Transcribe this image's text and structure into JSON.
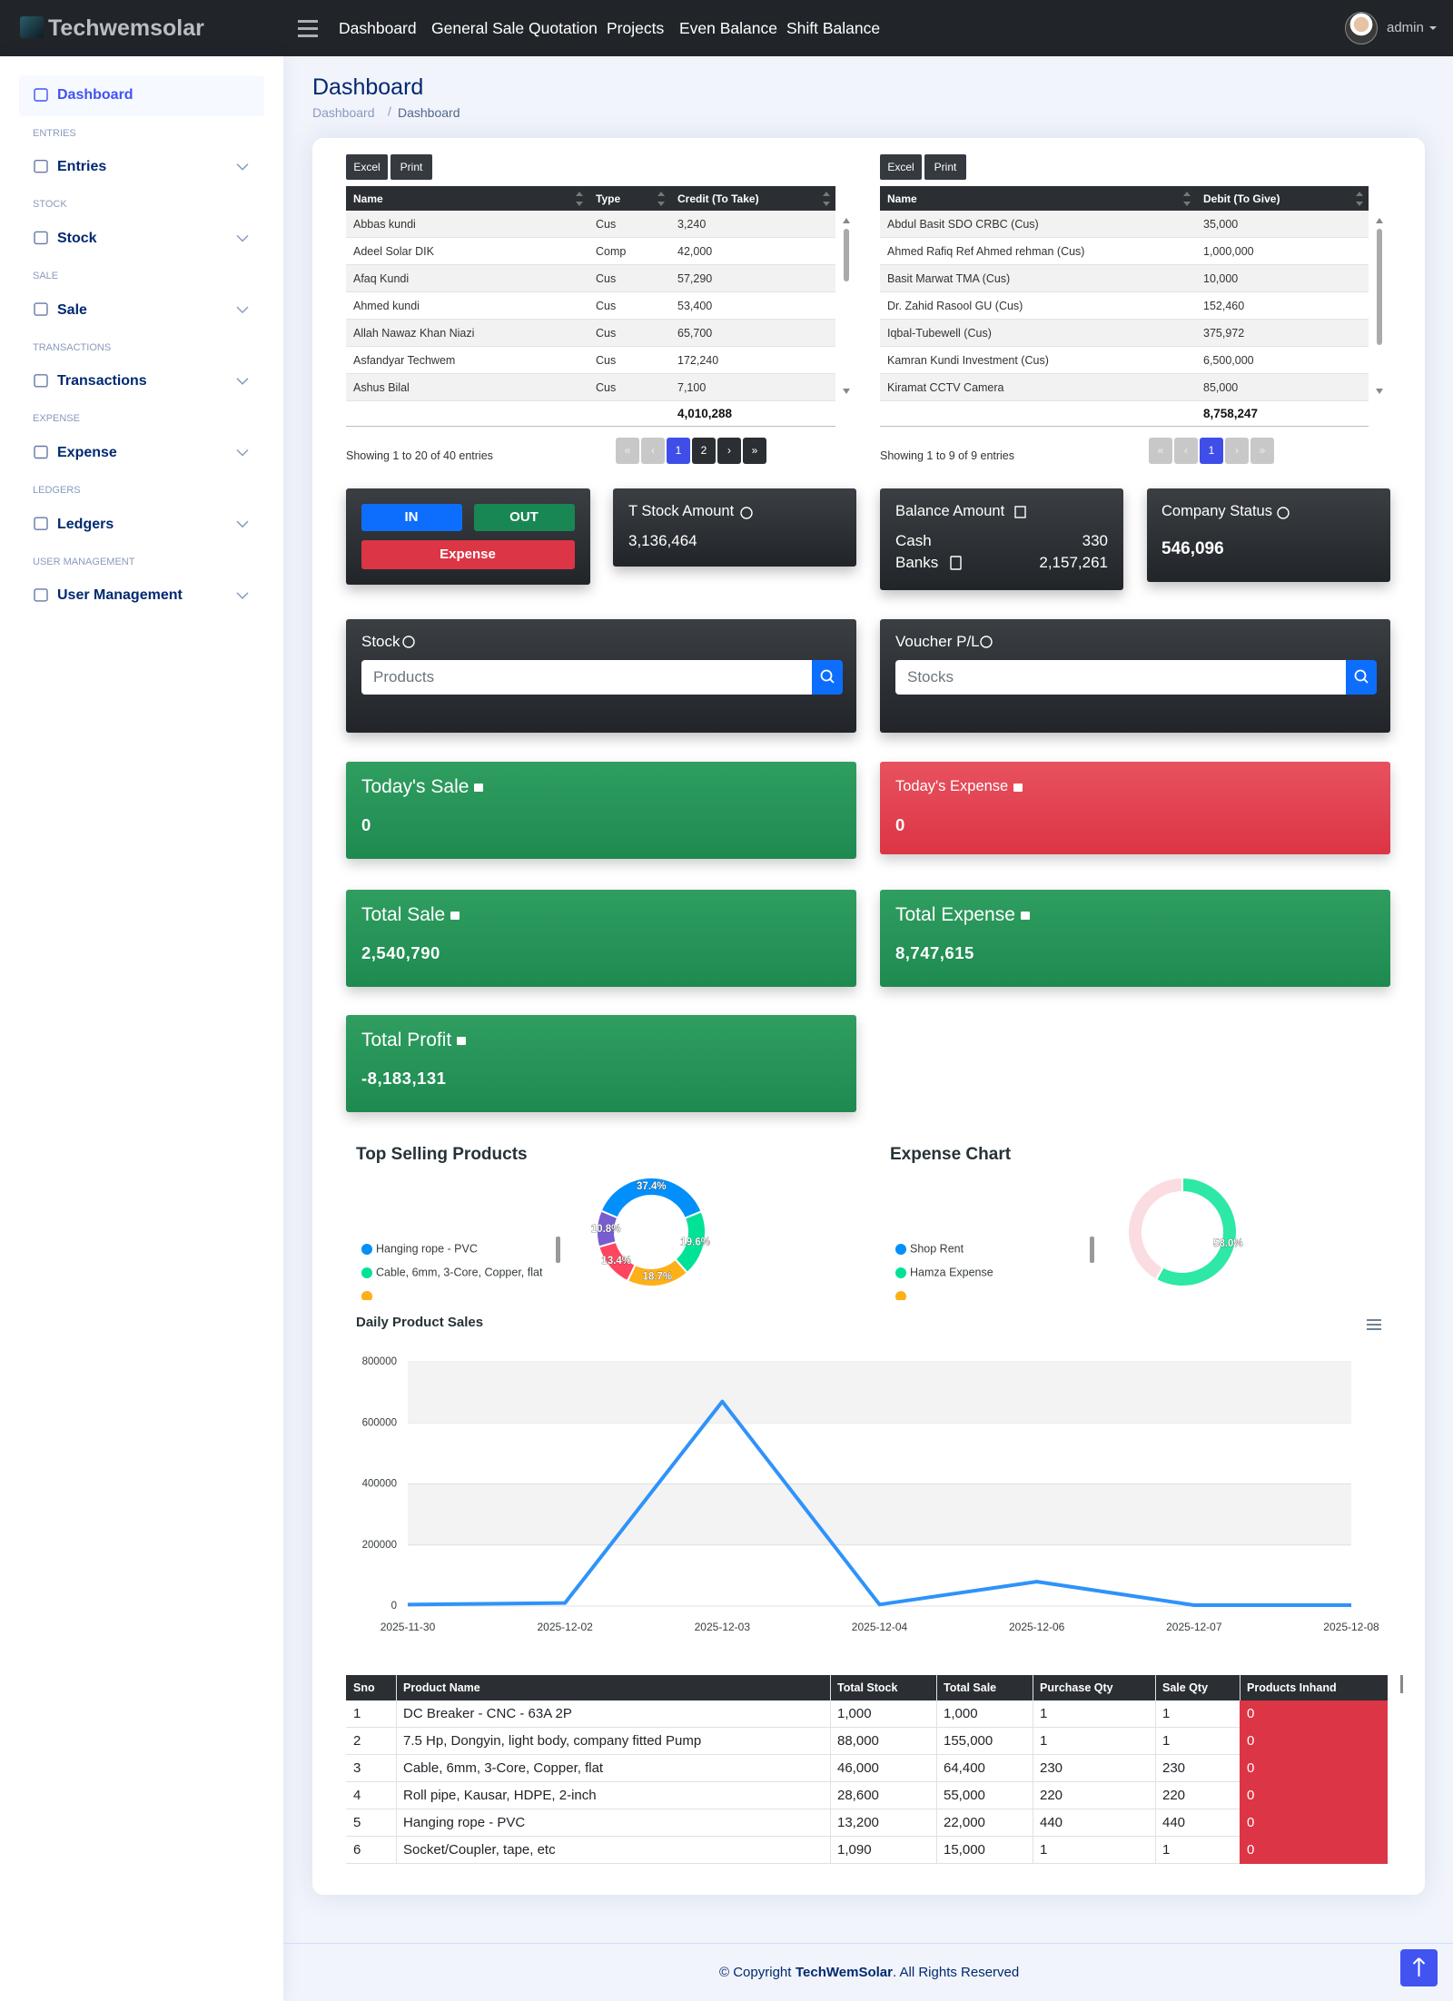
{
  "brand": "Techwemsolar",
  "nav": [
    "Dashboard",
    "General Sale",
    "Quotation",
    "Projects",
    "Even Balance",
    "Shift Balance"
  ],
  "user": "admin",
  "sidebar": [
    {
      "section": null,
      "label": "Dashboard"
    },
    {
      "section": "ENTRIES",
      "label": "Entries"
    },
    {
      "section": "STOCK",
      "label": "Stock"
    },
    {
      "section": "SALE",
      "label": "Sale"
    },
    {
      "section": "TRANSACTIONS",
      "label": "Transactions"
    },
    {
      "section": "EXPENSE",
      "label": "Expense"
    },
    {
      "section": "LEDGERS",
      "label": "Ledgers"
    },
    {
      "section": "USER MANAGEMENT",
      "label": "User Management"
    }
  ],
  "page_title": "Dashboard",
  "breadcrumb": [
    "Dashboard",
    "Dashboard"
  ],
  "credit_table": {
    "buttons": [
      "Excel",
      "Print"
    ],
    "columns": [
      "Name",
      "Type",
      "Credit (To Take)"
    ],
    "rows": [
      [
        "Abbas kundi",
        "Cus",
        "3,240"
      ],
      [
        "Adeel Solar DIK",
        "Comp",
        "42,000"
      ],
      [
        "Afaq Kundi",
        "Cus",
        "57,290"
      ],
      [
        "Ahmed kundi",
        "Cus",
        "53,400"
      ],
      [
        "Allah Nawaz Khan Niazi",
        "Cus",
        "65,700"
      ],
      [
        "Asfandyar Techwem",
        "Cus",
        "172,240"
      ],
      [
        "Ashus Bilal",
        "Cus",
        "7,100"
      ]
    ],
    "total": "4,010,288",
    "info": "Showing 1 to 20 of 40 entries",
    "pages": [
      "«",
      "‹",
      "1",
      "2",
      "›",
      "»"
    ]
  },
  "debit_table": {
    "buttons": [
      "Excel",
      "Print"
    ],
    "columns": [
      "Name",
      "Debit (To Give)"
    ],
    "rows": [
      [
        "Abdul Basit SDO CRBC (Cus)",
        "35,000"
      ],
      [
        "Ahmed Rafiq Ref Ahmed rehman (Cus)",
        "1,000,000"
      ],
      [
        "Basit Marwat TMA (Cus)",
        "10,000"
      ],
      [
        "Dr. Zahid Rasool GU (Cus)",
        "152,460"
      ],
      [
        "Iqbal-Tubewell (Cus)",
        "375,972"
      ],
      [
        "Kamran Kundi Investment (Cus)",
        "6,500,000"
      ],
      [
        "Kiramat CCTV Camera",
        "85,000"
      ]
    ],
    "total": "8,758,247",
    "info": "Showing 1 to 9 of 9 entries",
    "pages": [
      "«",
      "‹",
      "1",
      "›",
      "»"
    ]
  },
  "action_card": {
    "in": "IN",
    "out": "OUT",
    "expense": "Expense"
  },
  "stock_amount": {
    "title": "T Stock Amount",
    "value": "3,136,464"
  },
  "balance": {
    "title": "Balance Amount",
    "cash_label": "Cash",
    "cash": "330",
    "banks_label": "Banks",
    "banks": "2,157,261"
  },
  "company_status": {
    "title": "Company Status",
    "value": "546,096"
  },
  "stock_search": {
    "title": "Stock",
    "placeholder": "Products"
  },
  "voucher_search": {
    "title": "Voucher P/L",
    "placeholder": "Stocks"
  },
  "summary": [
    {
      "title": "Today's Sale",
      "value": "0"
    },
    {
      "title": "Today's Expense",
      "value": "0"
    },
    {
      "title": "Total Sale",
      "value": "2,540,790"
    },
    {
      "title": "Total Expense",
      "value": "8,747,615"
    },
    {
      "title": "Total Profit",
      "value": "-8,183,131"
    }
  ],
  "chart_data": [
    {
      "type": "pie",
      "donut": true,
      "title": "Top Selling Products",
      "labels": [
        "Hanging rope - PVC",
        "Cable, 6mm, 3-Core, Copper, flat",
        null,
        null,
        null
      ],
      "values": [
        37.4,
        19.6,
        18.7,
        13.4,
        10.8
      ],
      "value_labels": [
        "37.4%",
        "19.6%",
        "18.7%",
        "13.4%",
        "10.8%"
      ],
      "colors": [
        "#008ffb",
        "#00e396",
        "#feb019",
        "#ff4560",
        "#775dd0"
      ]
    },
    {
      "type": "pie",
      "donut": true,
      "title": "Expense Chart",
      "legend": [
        "Shop Rent",
        "Hamza Expense"
      ],
      "legend_colors": [
        "#008ffb",
        "#00e396"
      ],
      "values": [
        58.0,
        42.0
      ],
      "value_labels": [
        "58.0%",
        null
      ],
      "colors": [
        "#2ee8a5",
        "#fbdde1"
      ]
    },
    {
      "type": "line",
      "title": "Daily Product Sales",
      "categories": [
        "2025-11-30",
        "2025-12-02",
        "2025-12-03",
        "2025-12-04",
        "2025-12-06",
        "2025-12-07",
        "2025-12-08"
      ],
      "values": [
        5000,
        10000,
        670000,
        5000,
        80000,
        3000,
        3000
      ],
      "color": "#2e93fa",
      "ylim": [
        0,
        800000
      ],
      "yticks": [
        0,
        200000,
        400000,
        600000,
        800000
      ],
      "grid": true
    }
  ],
  "product_table": {
    "columns": [
      "Sno",
      "Product Name",
      "Total Stock",
      "Total Sale",
      "Purchase Qty",
      "Sale Qty",
      "Products Inhand"
    ],
    "rows": [
      [
        "1",
        "DC Breaker - CNC - 63A 2P",
        "1,000",
        "1,000",
        "1",
        "1",
        "0"
      ],
      [
        "2",
        "7.5 Hp, Dongyin, light body, company fitted Pump",
        "88,000",
        "155,000",
        "1",
        "1",
        "0"
      ],
      [
        "3",
        "Cable, 6mm, 3-Core, Copper, flat",
        "46,000",
        "64,400",
        "230",
        "230",
        "0"
      ],
      [
        "4",
        "Roll pipe, Kausar, HDPE, 2-inch",
        "28,600",
        "55,000",
        "220",
        "220",
        "0"
      ],
      [
        "5",
        "Hanging rope - PVC",
        "13,200",
        "22,000",
        "440",
        "440",
        "0"
      ],
      [
        "6",
        "Socket/Coupler, tape, etc",
        "1,090",
        "15,000",
        "1",
        "1",
        "0"
      ]
    ]
  },
  "footer": {
    "prefix": "© Copyright",
    "company": "TechWemSolar",
    "suffix": ". All Rights Reserved"
  }
}
